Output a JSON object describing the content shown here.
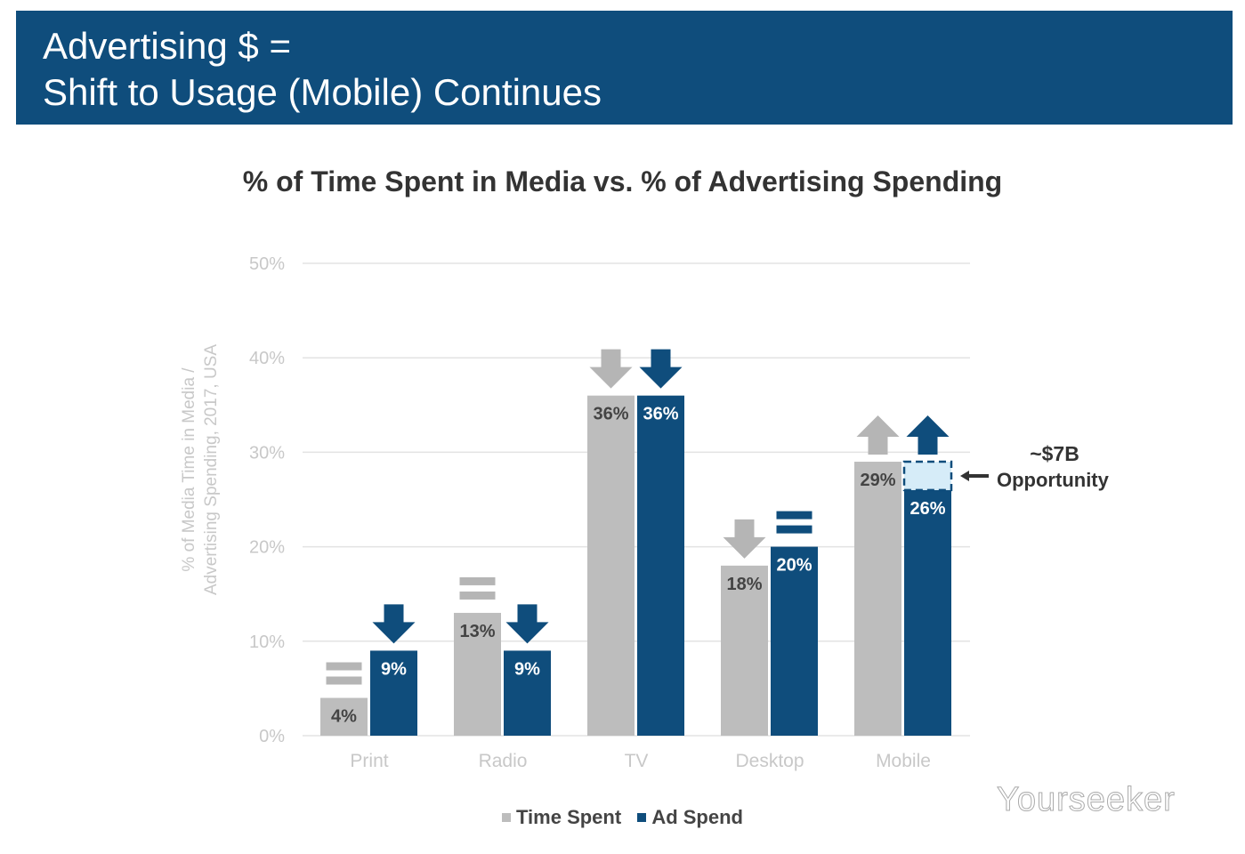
{
  "header": {
    "line1": "Advertising $ =",
    "line2": "Shift to Usage (Mobile) Continues"
  },
  "watermark": "Yourseeker",
  "colors": {
    "time_spent": "#bdbdbd",
    "ad_spend": "#0f4d7c",
    "opportunity": "#d6ecf8",
    "header": "#0f4d7c"
  },
  "chart_data": {
    "type": "bar",
    "title": "% of Time Spent in Media vs. % of Advertising Spending",
    "ylabel_line1": "% of Media Time in Media /",
    "ylabel_line2": "Advertising Spending, 2017, USA",
    "xlabel": "",
    "ylim": [
      0,
      50
    ],
    "yticks": [
      "0%",
      "10%",
      "20%",
      "30%",
      "40%",
      "50%"
    ],
    "grid": true,
    "legend_position": "bottom",
    "categories": [
      "Print",
      "Radio",
      "TV",
      "Desktop",
      "Mobile"
    ],
    "series": [
      {
        "name": "Time Spent",
        "values": [
          4,
          13,
          36,
          18,
          29
        ],
        "labels": [
          "4%",
          "13%",
          "36%",
          "18%",
          "29%"
        ],
        "trend": [
          "equal",
          "equal",
          "down",
          "down",
          "up"
        ]
      },
      {
        "name": "Ad Spend",
        "values": [
          9,
          9,
          36,
          20,
          26
        ],
        "labels": [
          "9%",
          "9%",
          "36%",
          "20%",
          "26%"
        ],
        "trend": [
          "down",
          "down",
          "down",
          "equal",
          "up"
        ]
      }
    ],
    "annotation": {
      "category": "Mobile",
      "from": 26,
      "to": 29,
      "line1": "~$7B",
      "line2": "Opportunity"
    }
  }
}
